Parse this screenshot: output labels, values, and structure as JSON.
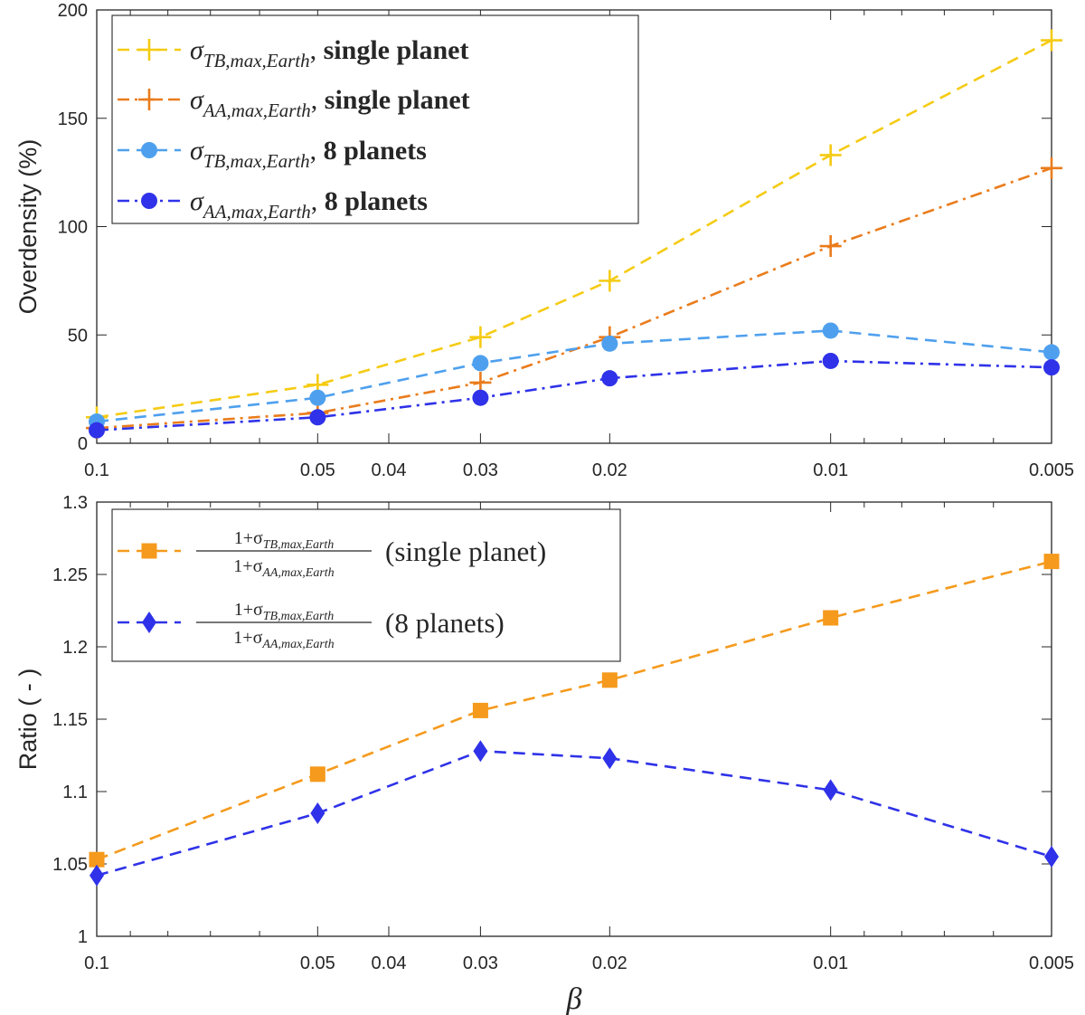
{
  "chart_data": [
    {
      "type": "line",
      "x_scale": "log-reversed",
      "x": [
        0.1,
        0.05,
        0.03,
        0.02,
        0.01,
        0.005
      ],
      "xticks": [
        "0.1",
        "0.05",
        "0.04",
        "0.03",
        "0.02",
        "0.01",
        "0.005"
      ],
      "xtick_values": [
        0.1,
        0.05,
        0.04,
        0.03,
        0.02,
        0.01,
        0.005
      ],
      "xlim": [
        0.1,
        0.005
      ],
      "ylabel": "Overdensity (%)",
      "ylim": [
        0,
        200
      ],
      "yticks": [
        "0",
        "50",
        "100",
        "150",
        "200"
      ],
      "ytick_values": [
        0,
        50,
        100,
        150,
        200
      ],
      "legend_position": "top-left",
      "series": [
        {
          "sigma": "σ",
          "sub": "TB,max,Earth",
          "sep": ",",
          "suffix": "single planet",
          "color": "#f5cb14",
          "dash": "dashed",
          "marker": "plus",
          "values": [
            12,
            27,
            49,
            75,
            133,
            186
          ]
        },
        {
          "sigma": "σ",
          "sub": "AA,max,Earth",
          "sep": ",",
          "suffix": "single planet",
          "color": "#ea7c1c",
          "dash": "dashdot",
          "marker": "plus",
          "values": [
            7,
            14,
            28,
            49,
            91,
            127
          ]
        },
        {
          "sigma": "σ",
          "sub": "TB,max,Earth",
          "sep": ",",
          "suffix": "8 planets",
          "color": "#4ea0ee",
          "dash": "dashed",
          "marker": "circle",
          "values": [
            10,
            21,
            37,
            46,
            52,
            42
          ]
        },
        {
          "sigma": "σ",
          "sub": "AA,max,Earth",
          "sep": ",",
          "suffix": "8 planets",
          "color": "#2f32e8",
          "dash": "dashdot",
          "marker": "circle",
          "values": [
            6,
            12,
            21,
            30,
            38,
            35
          ]
        }
      ]
    },
    {
      "type": "line",
      "x_scale": "log-reversed",
      "x": [
        0.1,
        0.05,
        0.03,
        0.02,
        0.01,
        0.005
      ],
      "xticks": [
        "0.1",
        "0.05",
        "0.04",
        "0.03",
        "0.02",
        "0.01",
        "0.005"
      ],
      "xtick_values": [
        0.1,
        0.05,
        0.04,
        0.03,
        0.02,
        0.01,
        0.005
      ],
      "xlim": [
        0.1,
        0.005
      ],
      "xlabel": "β",
      "ylabel": "Ratio ( - )",
      "ylim": [
        1,
        1.3
      ],
      "yticks": [
        "1",
        "1.05",
        "1.1",
        "1.15",
        "1.2",
        "1.25",
        "1.3"
      ],
      "ytick_values": [
        1,
        1.05,
        1.1,
        1.15,
        1.2,
        1.25,
        1.3
      ],
      "legend_position": "top-left",
      "series": [
        {
          "num_prefix": "1+σ",
          "num_sub": "TB,max,Earth",
          "den_prefix": "1+σ",
          "den_sub": "AA,max,Earth",
          "suffix": "(single planet)",
          "color": "#f59a1c",
          "dash": "dashed",
          "marker": "square",
          "values": [
            1.053,
            1.112,
            1.156,
            1.177,
            1.22,
            1.259
          ]
        },
        {
          "num_prefix": "1+σ",
          "num_sub": "TB,max,Earth",
          "den_prefix": "1+σ",
          "den_sub": "AA,max,Earth",
          "suffix": "(8 planets)",
          "color": "#2f32e8",
          "dash": "dashed",
          "marker": "diamond",
          "values": [
            1.042,
            1.085,
            1.128,
            1.123,
            1.101,
            1.055
          ]
        }
      ]
    }
  ]
}
